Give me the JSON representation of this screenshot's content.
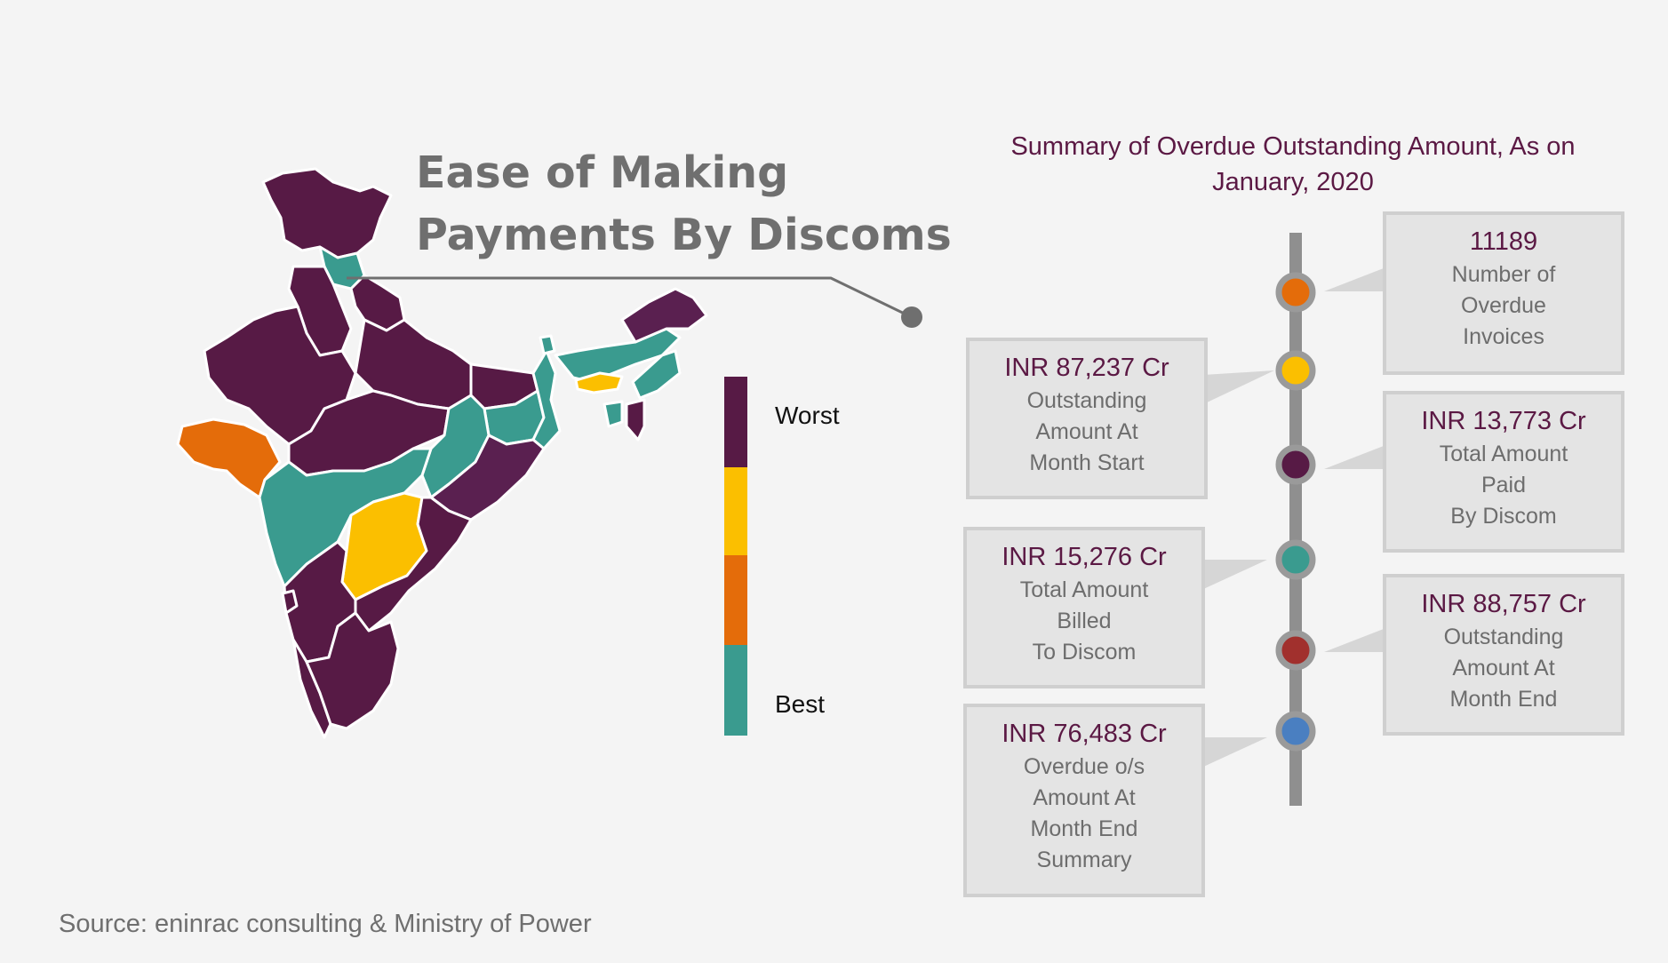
{
  "map": {
    "title_line1": "Ease of Making",
    "title_line2": "Payments By Discoms",
    "legend": {
      "worst_label": "Worst",
      "best_label": "Best",
      "scale": [
        {
          "rank": "worst",
          "color": "#571a45"
        },
        {
          "rank": "poor",
          "color": "#fbbf00"
        },
        {
          "rank": "moderate",
          "color": "#e46c0a"
        },
        {
          "rank": "best",
          "color": "#3a9b8f"
        }
      ]
    },
    "colors": {
      "worst": "#571a45",
      "yellow": "#fbbf00",
      "orange": "#e46c0a",
      "best": "#3a9b8f",
      "border": "#ffffff"
    }
  },
  "summary": {
    "title_line1": "Summary of Overdue Outstanding Amount, As on",
    "title_line2": "January, 2020",
    "cards": [
      {
        "id": "invoices",
        "value": "11189",
        "lines": [
          "Number of",
          "Overdue",
          "Invoices"
        ],
        "dot_color": "#e46c0a"
      },
      {
        "id": "start",
        "value": "INR 87,237 Cr",
        "lines": [
          "Outstanding",
          "Amount At",
          "Month Start"
        ],
        "dot_color": "#fbbf00"
      },
      {
        "id": "paid",
        "value": "INR 13,773 Cr",
        "lines": [
          "Total Amount",
          "Paid",
          "By Discom"
        ],
        "dot_color": "#571a45"
      },
      {
        "id": "billed",
        "value": "INR 15,276 Cr",
        "lines": [
          "Total Amount",
          "Billed",
          "To Discom"
        ],
        "dot_color": "#3a9b8f"
      },
      {
        "id": "end",
        "value": "INR 88,757 Cr",
        "lines": [
          "Outstanding",
          "Amount At",
          "Month End"
        ],
        "dot_color": "#a1302d"
      },
      {
        "id": "overdue",
        "value": "INR 76,483 Cr",
        "lines": [
          "Overdue o/s",
          "Amount At",
          "Month End",
          "Summary"
        ],
        "dot_color": "#4a7fc1"
      }
    ]
  },
  "source": "Source: eninrac consulting & Ministry of Power"
}
